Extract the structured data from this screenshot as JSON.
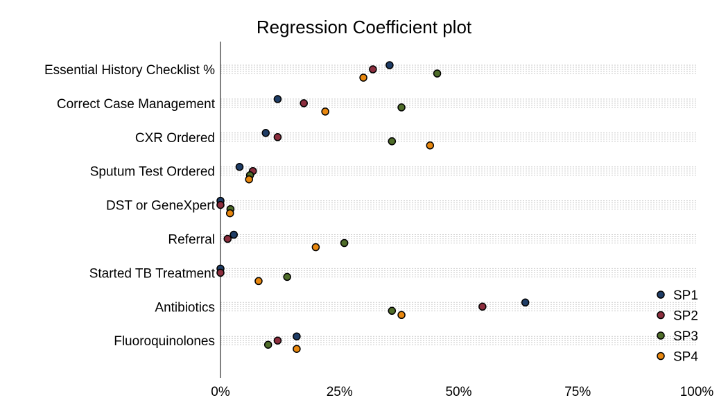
{
  "chart_data": {
    "type": "scatter",
    "title": "Regression Coefficient plot",
    "xlabel": "",
    "ylabel": "",
    "xlim": [
      0,
      100
    ],
    "x_ticks": [
      "0%",
      "25%",
      "50%",
      "75%",
      "100%"
    ],
    "x_tick_values": [
      0,
      25,
      50,
      75,
      100
    ],
    "grid": true,
    "legend_position": "bottom-right",
    "categories": [
      "Essential History Checklist %",
      "Correct Case Management",
      "CXR Ordered",
      "Sputum Test Ordered",
      "DST or GeneXpert",
      "Referral",
      "Started TB Treatment",
      "Antibiotics",
      "Fluoroquinolones"
    ],
    "series": [
      {
        "name": "SP1",
        "color": "#1f3d66",
        "values": [
          35.5,
          12,
          9.5,
          4,
          0,
          2.8,
          0,
          64,
          16
        ]
      },
      {
        "name": "SP2",
        "color": "#8c2e3e",
        "values": [
          32,
          17.5,
          12,
          6.8,
          0,
          1.5,
          0,
          55,
          12
        ]
      },
      {
        "name": "SP3",
        "color": "#4f6d2a",
        "values": [
          45.5,
          38,
          36,
          6.2,
          2.1,
          26,
          14,
          36,
          10
        ]
      },
      {
        "name": "SP4",
        "color": "#e8870e",
        "values": [
          30,
          22,
          44,
          6,
          2,
          20,
          8,
          38,
          16
        ]
      }
    ]
  }
}
